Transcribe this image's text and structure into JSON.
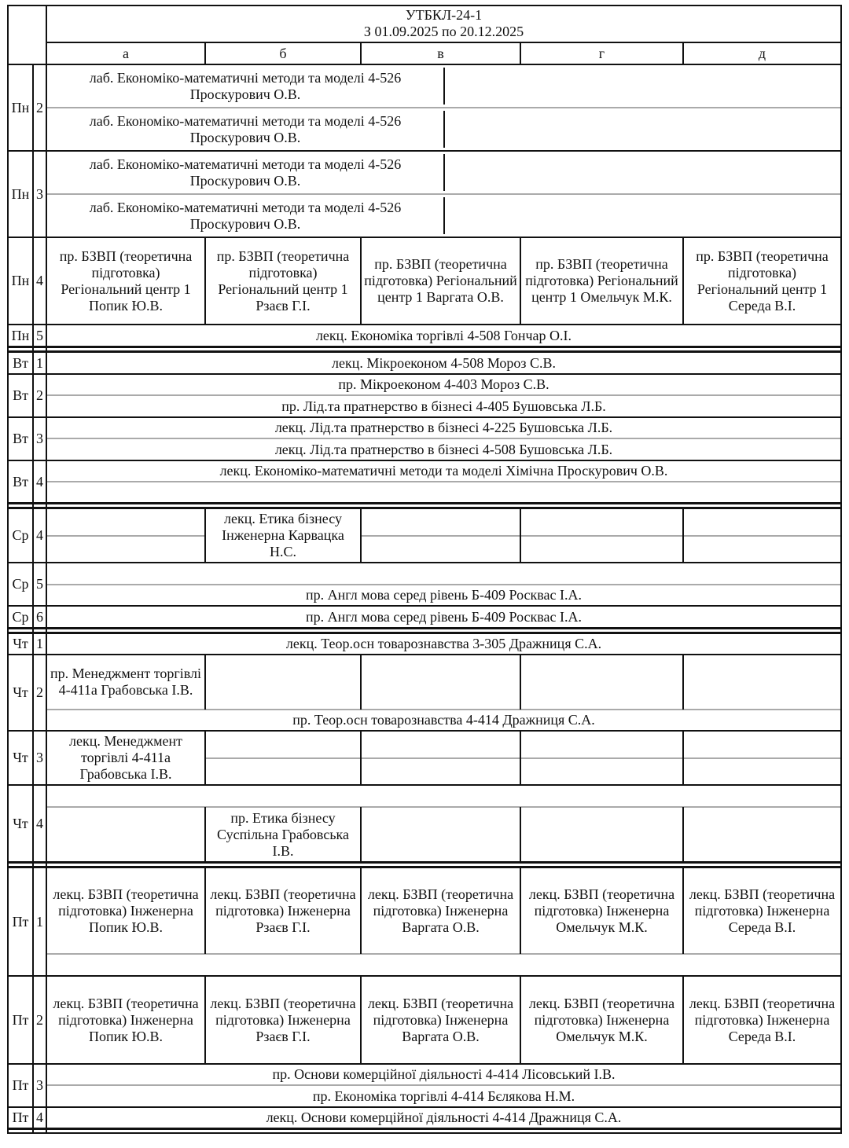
{
  "header": {
    "group": "УТБКЛ-24-1",
    "period": "З 01.09.2025 по 20.12.2025",
    "columns": [
      "а",
      "б",
      "в",
      "г",
      "д"
    ]
  },
  "rows": [
    {
      "day": "Пн",
      "pair": "2",
      "split": true,
      "cells": [
        {
          "c": [
            0,
            1
          ],
          "r": [
            0,
            0
          ],
          "partial": true,
          "t": "лаб. Економіко-математичні методи та моделі 4-526 Проскурович О.В."
        },
        {
          "c": [
            0,
            1
          ],
          "r": [
            1,
            1
          ],
          "partial": true,
          "t": "лаб. Економіко-математичні методи та моделі 4-526 Проскурович О.В."
        }
      ]
    },
    {
      "day": "Пн",
      "pair": "3",
      "split": true,
      "cells": [
        {
          "c": [
            0,
            1
          ],
          "r": [
            0,
            0
          ],
          "partial": true,
          "t": "лаб. Економіко-математичні методи та моделі 4-526 Проскурович О.В."
        },
        {
          "c": [
            0,
            1
          ],
          "r": [
            1,
            1
          ],
          "partial": true,
          "t": "лаб. Економіко-математичні методи та моделі 4-526 Проскурович О.В."
        }
      ]
    },
    {
      "day": "Пн",
      "pair": "4",
      "split": false,
      "cells": [
        {
          "c": [
            0,
            0
          ],
          "r": [
            0,
            0
          ],
          "t": "пр. БЗВП (теоретична підготовка) Регіональний центр 1 Попик Ю.В."
        },
        {
          "c": [
            1,
            1
          ],
          "r": [
            0,
            0
          ],
          "t": "пр. БЗВП (теоретична підготовка) Регіональний центр 1 Рзаєв Г.І."
        },
        {
          "c": [
            2,
            2
          ],
          "r": [
            0,
            0
          ],
          "t": "пр. БЗВП (теоретична підготовка) Регіональний центр 1 Варгата О.В."
        },
        {
          "c": [
            3,
            3
          ],
          "r": [
            0,
            0
          ],
          "t": "пр. БЗВП (теоретична підготовка) Регіональний центр 1 Омельчук М.К."
        },
        {
          "c": [
            4,
            4
          ],
          "r": [
            0,
            0
          ],
          "t": "пр. БЗВП (теоретична підготовка) Регіональний центр 1 Середа В.І."
        }
      ]
    },
    {
      "day": "Пн",
      "pair": "5",
      "split": false,
      "cells": [
        {
          "c": [
            0,
            4
          ],
          "r": [
            0,
            0
          ],
          "t": "лекц. Економіка торгівлі 4-508 Гончар О.І."
        }
      ]
    },
    {
      "day": "Вт",
      "pair": "1",
      "split": false,
      "cells": [
        {
          "c": [
            0,
            4
          ],
          "r": [
            0,
            0
          ],
          "t": "лекц. Мікроеконом 4-508 Мороз С.В."
        }
      ]
    },
    {
      "day": "Вт",
      "pair": "2",
      "split": true,
      "cells": [
        {
          "c": [
            0,
            4
          ],
          "r": [
            0,
            0
          ],
          "t": "пр. Мікроеконом 4-403 Мороз С.В."
        },
        {
          "c": [
            0,
            4
          ],
          "r": [
            1,
            1
          ],
          "t": "пр. Лід.та пратнерство в бізнесі 4-405 Бушовська Л.Б."
        }
      ]
    },
    {
      "day": "Вт",
      "pair": "3",
      "split": true,
      "cells": [
        {
          "c": [
            0,
            4
          ],
          "r": [
            0,
            0
          ],
          "t": "лекц. Лід.та пратнерство в бізнесі 4-225 Бушовська Л.Б."
        },
        {
          "c": [
            0,
            4
          ],
          "r": [
            1,
            1
          ],
          "t": "лекц. Лід.та пратнерство в бізнесі 4-508 Бушовська Л.Б."
        }
      ]
    },
    {
      "day": "Вт",
      "pair": "4",
      "split": true,
      "cells": [
        {
          "c": [
            0,
            4
          ],
          "r": [
            0,
            0
          ],
          "t": "лекц. Економіко-математичні методи та моделі Хімічна Проскурович О.В."
        },
        {
          "c": [
            0,
            4
          ],
          "r": [
            1,
            1
          ],
          "t": ""
        }
      ]
    },
    {
      "day": "Ср",
      "pair": "4",
      "split": true,
      "cells": [
        {
          "c": [
            0,
            0
          ],
          "r": [
            0,
            0
          ],
          "t": ""
        },
        {
          "c": [
            0,
            0
          ],
          "r": [
            1,
            1
          ],
          "t": ""
        },
        {
          "c": [
            1,
            1
          ],
          "r": [
            0,
            1
          ],
          "t": "лекц. Етика бізнесу Інженерна Карвацка Н.С."
        },
        {
          "c": [
            2,
            2
          ],
          "r": [
            0,
            0
          ],
          "t": ""
        },
        {
          "c": [
            2,
            2
          ],
          "r": [
            1,
            1
          ],
          "t": ""
        },
        {
          "c": [
            3,
            3
          ],
          "r": [
            0,
            0
          ],
          "t": ""
        },
        {
          "c": [
            3,
            3
          ],
          "r": [
            1,
            1
          ],
          "t": ""
        },
        {
          "c": [
            4,
            4
          ],
          "r": [
            0,
            0
          ],
          "t": ""
        },
        {
          "c": [
            4,
            4
          ],
          "r": [
            1,
            1
          ],
          "t": ""
        }
      ]
    },
    {
      "day": "Ср",
      "pair": "5",
      "split": true,
      "cells": [
        {
          "c": [
            0,
            4
          ],
          "r": [
            0,
            0
          ],
          "t": ""
        },
        {
          "c": [
            0,
            4
          ],
          "r": [
            1,
            1
          ],
          "t": "пр. Англ мова серед рівень Б-409 Росквас І.А."
        }
      ]
    },
    {
      "day": "Ср",
      "pair": "6",
      "split": false,
      "cells": [
        {
          "c": [
            0,
            4
          ],
          "r": [
            0,
            0
          ],
          "t": "пр. Англ мова серед рівень Б-409 Росквас І.А."
        }
      ]
    },
    {
      "day": "Чт",
      "pair": "1",
      "split": false,
      "cells": [
        {
          "c": [
            0,
            4
          ],
          "r": [
            0,
            0
          ],
          "t": "лекц. Теор.осн товарознавства 3-305 Дражниця С.А."
        }
      ]
    },
    {
      "day": "Чт",
      "pair": "2",
      "split": true,
      "cells": [
        {
          "c": [
            0,
            0
          ],
          "r": [
            0,
            0
          ],
          "t": "пр. Менеджмент торгівлі 4-411а Грабовська І.В."
        },
        {
          "c": [
            1,
            1
          ],
          "r": [
            0,
            0
          ],
          "t": ""
        },
        {
          "c": [
            2,
            2
          ],
          "r": [
            0,
            0
          ],
          "t": ""
        },
        {
          "c": [
            3,
            3
          ],
          "r": [
            0,
            0
          ],
          "t": ""
        },
        {
          "c": [
            4,
            4
          ],
          "r": [
            0,
            0
          ],
          "t": ""
        },
        {
          "c": [
            0,
            4
          ],
          "r": [
            1,
            1
          ],
          "t": "пр. Теор.осн товарознавства 4-414 Дражниця С.А."
        }
      ]
    },
    {
      "day": "Чт",
      "pair": "3",
      "split": true,
      "cells": [
        {
          "c": [
            0,
            0
          ],
          "r": [
            0,
            1
          ],
          "t": "лекц. Менеджмент торгівлі 4-411а Грабовська І.В."
        },
        {
          "c": [
            1,
            1
          ],
          "r": [
            0,
            0
          ],
          "t": ""
        },
        {
          "c": [
            1,
            1
          ],
          "r": [
            1,
            1
          ],
          "t": ""
        },
        {
          "c": [
            2,
            2
          ],
          "r": [
            0,
            0
          ],
          "t": ""
        },
        {
          "c": [
            2,
            2
          ],
          "r": [
            1,
            1
          ],
          "t": ""
        },
        {
          "c": [
            3,
            3
          ],
          "r": [
            0,
            0
          ],
          "t": ""
        },
        {
          "c": [
            3,
            3
          ],
          "r": [
            1,
            1
          ],
          "t": ""
        },
        {
          "c": [
            4,
            4
          ],
          "r": [
            0,
            0
          ],
          "t": ""
        },
        {
          "c": [
            4,
            4
          ],
          "r": [
            1,
            1
          ],
          "t": ""
        }
      ]
    },
    {
      "day": "Чт",
      "pair": "4",
      "split": true,
      "cells": [
        {
          "c": [
            0,
            4
          ],
          "r": [
            0,
            0
          ],
          "t": ""
        },
        {
          "c": [
            0,
            0
          ],
          "r": [
            1,
            1
          ],
          "t": ""
        },
        {
          "c": [
            1,
            1
          ],
          "r": [
            1,
            1
          ],
          "t": "пр. Етика бізнесу Суспільна Грабовська І.В."
        },
        {
          "c": [
            2,
            2
          ],
          "r": [
            1,
            1
          ],
          "t": ""
        },
        {
          "c": [
            3,
            3
          ],
          "r": [
            1,
            1
          ],
          "t": ""
        },
        {
          "c": [
            4,
            4
          ],
          "r": [
            1,
            1
          ],
          "t": ""
        }
      ]
    },
    {
      "day": "Пт",
      "pair": "1",
      "split": true,
      "cells": [
        {
          "c": [
            0,
            0
          ],
          "r": [
            0,
            0
          ],
          "t": "лекц. БЗВП (теоретична підготовка) Інженерна Попик Ю.В."
        },
        {
          "c": [
            1,
            1
          ],
          "r": [
            0,
            0
          ],
          "t": "лекц. БЗВП (теоретична підготовка) Інженерна Рзаєв Г.І."
        },
        {
          "c": [
            2,
            2
          ],
          "r": [
            0,
            0
          ],
          "t": "лекц. БЗВП (теоретична підготовка) Інженерна Варгата О.В."
        },
        {
          "c": [
            3,
            3
          ],
          "r": [
            0,
            0
          ],
          "t": "лекц. БЗВП (теоретична підготовка) Інженерна Омельчук М.К."
        },
        {
          "c": [
            4,
            4
          ],
          "r": [
            0,
            0
          ],
          "t": "лекц. БЗВП (теоретична підготовка) Інженерна Середа В.І."
        },
        {
          "c": [
            0,
            4
          ],
          "r": [
            1,
            1
          ],
          "t": ""
        }
      ]
    },
    {
      "day": "Пт",
      "pair": "2",
      "split": false,
      "cells": [
        {
          "c": [
            0,
            0
          ],
          "r": [
            0,
            0
          ],
          "t": "лекц. БЗВП (теоретична підготовка) Інженерна Попик Ю.В."
        },
        {
          "c": [
            1,
            1
          ],
          "r": [
            0,
            0
          ],
          "t": "лекц. БЗВП (теоретична підготовка) Інженерна Рзаєв Г.І."
        },
        {
          "c": [
            2,
            2
          ],
          "r": [
            0,
            0
          ],
          "t": "лекц. БЗВП (теоретична підготовка) Інженерна Варгата О.В."
        },
        {
          "c": [
            3,
            3
          ],
          "r": [
            0,
            0
          ],
          "t": "лекц. БЗВП (теоретична підготовка) Інженерна Омельчук М.К."
        },
        {
          "c": [
            4,
            4
          ],
          "r": [
            0,
            0
          ],
          "t": "лекц. БЗВП (теоретична підготовка) Інженерна Середа В.І."
        }
      ]
    },
    {
      "day": "Пт",
      "pair": "3",
      "split": true,
      "cells": [
        {
          "c": [
            0,
            4
          ],
          "r": [
            0,
            0
          ],
          "t": "пр. Основи комерційної діяльності 4-414 Лісовський І.В."
        },
        {
          "c": [
            0,
            4
          ],
          "r": [
            1,
            1
          ],
          "t": "пр. Економіка торгівлі 4-414 Бєлякова Н.М."
        }
      ]
    },
    {
      "day": "Пт",
      "pair": "4",
      "split": false,
      "cells": [
        {
          "c": [
            0,
            4
          ],
          "r": [
            0,
            0
          ],
          "t": "лекц. Основи комерційної діяльності 4-414 Дражниця С.А."
        }
      ]
    }
  ]
}
